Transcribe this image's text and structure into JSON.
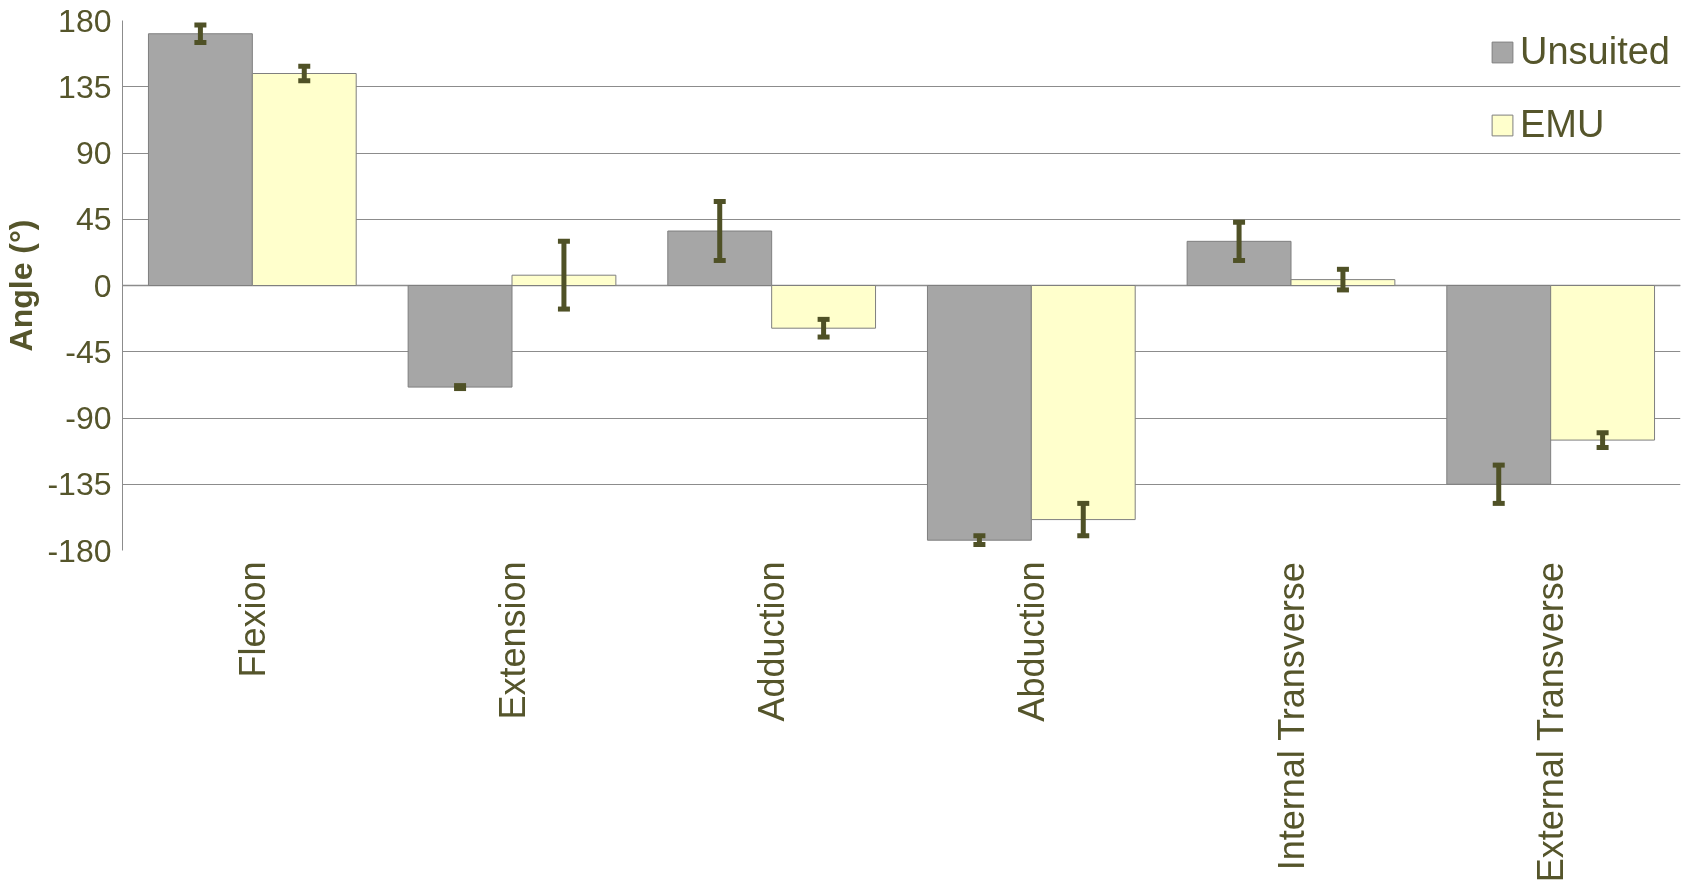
{
  "chart_data": {
    "type": "bar",
    "ylabel": "Angle (°)",
    "categories": [
      "Flexion",
      "Extension",
      "Adduction",
      "Abduction",
      "Internal Transverse",
      "External Transverse"
    ],
    "series": [
      {
        "name": "Unsuited",
        "color": "#a6a6a6",
        "values": [
          171,
          -69,
          37,
          -173,
          30,
          -135
        ],
        "errors": [
          6,
          1,
          20,
          3,
          13,
          13
        ]
      },
      {
        "name": "EMU",
        "color": "#ffffcc",
        "values": [
          144,
          7,
          -29,
          -159,
          4,
          -105
        ],
        "errors": [
          5,
          23,
          6,
          11,
          7,
          5
        ]
      }
    ],
    "ylim": [
      -180,
      180
    ],
    "yticks": [
      -180,
      -135,
      -90,
      -45,
      0,
      45,
      90,
      135,
      180
    ],
    "grid": "y",
    "legend": "top right"
  }
}
